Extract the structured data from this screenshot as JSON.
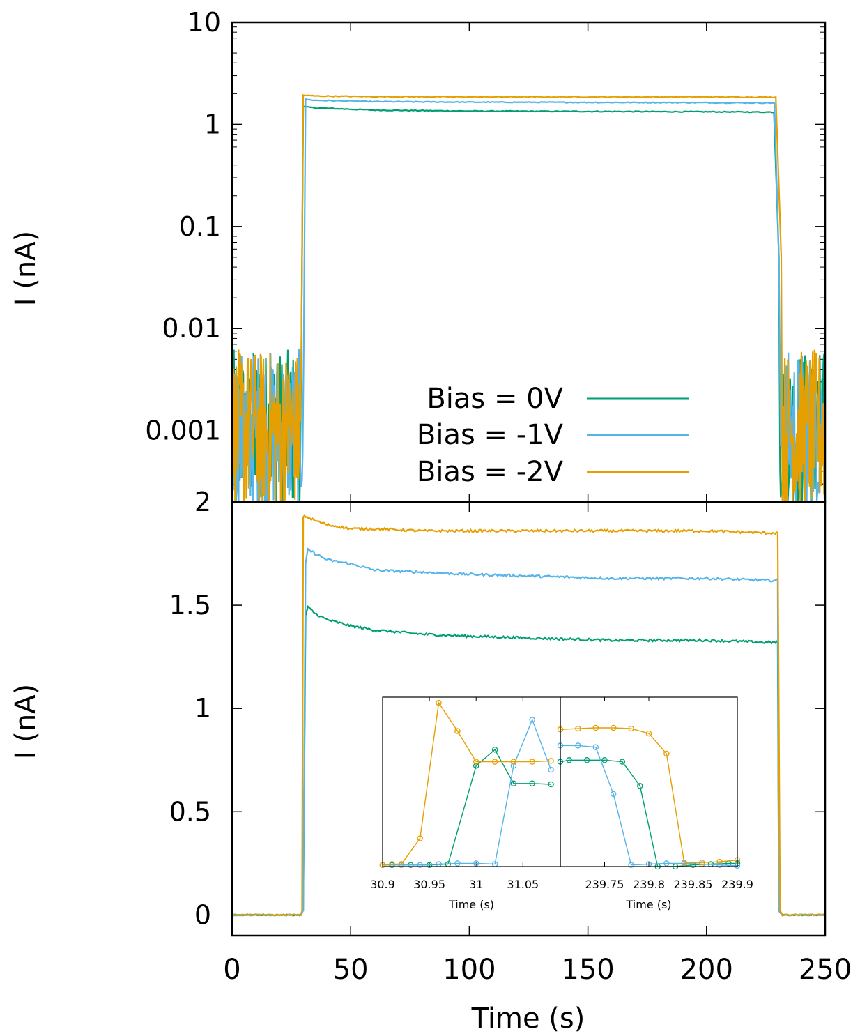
{
  "colors": {
    "bias_0v": "#009e73",
    "bias_m1v": "#56b4e9",
    "bias_m2v": "#e69f00",
    "axis": "#000000"
  },
  "chart_data": [
    {
      "id": "top-log-panel",
      "type": "line",
      "xlabel": "",
      "ylabel": "I (nA)",
      "yscale": "log",
      "xlim": [
        0,
        250
      ],
      "ylim": [
        0.0002,
        10
      ],
      "xticks": [
        0,
        50,
        100,
        150,
        200,
        250
      ],
      "yticks": [
        10,
        1,
        0.1,
        0.01,
        0.001
      ],
      "ytick_labels": [
        "10",
        "1",
        "0.1",
        "0.01",
        "0.001"
      ],
      "legend": {
        "placement": "bottom-center",
        "entries": [
          "Bias = 0V",
          "Bias = -1V",
          "Bias = -2V"
        ]
      },
      "series": [
        {
          "name": "Bias = 0V",
          "color": "#009e73",
          "on_segment": {
            "x": [
              30,
              35,
              60,
              100,
              150,
              200,
              229
            ],
            "y": [
              1.49,
              1.45,
              1.38,
              1.35,
              1.34,
              1.33,
              1.32
            ]
          },
          "on_time": 30,
          "off_time": 231,
          "noise_floor": 0.001
        },
        {
          "name": "Bias = -1V",
          "color": "#56b4e9",
          "on_segment": {
            "x": [
              30,
              35,
              60,
              100,
              150,
              200,
              229
            ],
            "y": [
              1.77,
              1.72,
              1.67,
              1.65,
              1.64,
              1.63,
              1.62
            ]
          },
          "on_time": 31,
          "off_time": 231,
          "noise_floor": 0.001
        },
        {
          "name": "Bias = -2V",
          "color": "#e69f00",
          "on_segment": {
            "x": [
              30,
              35,
              60,
              100,
              150,
              200,
              229
            ],
            "y": [
              1.93,
              1.9,
              1.87,
              1.86,
              1.86,
              1.86,
              1.85
            ]
          },
          "on_time": 30,
          "off_time": 232,
          "noise_floor": 0.001
        }
      ]
    },
    {
      "id": "bottom-linear-panel",
      "type": "line",
      "xlabel": "Time (s)",
      "ylabel": "I (nA)",
      "xlim": [
        0,
        250
      ],
      "ylim": [
        -0.1,
        2
      ],
      "xticks": [
        0,
        50,
        100,
        150,
        200,
        250
      ],
      "yticks": [
        0,
        0.5,
        1,
        1.5,
        2
      ],
      "series": [
        {
          "name": "Bias = 0V",
          "color": "#009e73",
          "x": [
            0,
            29,
            30,
            31,
            32,
            35,
            40,
            50,
            60,
            80,
            100,
            130,
            160,
            200,
            225,
            228,
            229,
            230,
            230.5,
            232,
            250
          ],
          "y": [
            0,
            0,
            0.02,
            1.45,
            1.49,
            1.46,
            1.43,
            1.4,
            1.38,
            1.36,
            1.35,
            1.34,
            1.33,
            1.33,
            1.32,
            1.32,
            1.32,
            1.32,
            0.02,
            0,
            0
          ]
        },
        {
          "name": "Bias = -1V",
          "color": "#56b4e9",
          "x": [
            0,
            29,
            30,
            31,
            32,
            35,
            40,
            50,
            60,
            80,
            100,
            130,
            160,
            200,
            225,
            228,
            229,
            230,
            230.5,
            232,
            250
          ],
          "y": [
            0,
            0,
            0.02,
            1.7,
            1.77,
            1.75,
            1.72,
            1.7,
            1.67,
            1.66,
            1.65,
            1.64,
            1.63,
            1.63,
            1.62,
            1.62,
            1.62,
            1.62,
            0.02,
            0,
            0
          ]
        },
        {
          "name": "Bias = -2V",
          "color": "#e69f00",
          "x": [
            0,
            29,
            29.5,
            30,
            31,
            35,
            40,
            50,
            60,
            80,
            100,
            130,
            160,
            200,
            225,
            228,
            229,
            230,
            231,
            232,
            250
          ],
          "y": [
            0,
            0,
            0.02,
            1.93,
            1.93,
            1.91,
            1.89,
            1.87,
            1.87,
            1.86,
            1.86,
            1.86,
            1.86,
            1.86,
            1.85,
            1.85,
            1.85,
            1.85,
            0.02,
            0,
            0
          ]
        }
      ]
    },
    {
      "id": "inset-left",
      "type": "line",
      "xlabel": "Time (s)",
      "xlim": [
        30.9,
        31.09
      ],
      "xticks": [
        30.9,
        30.95,
        31,
        31.05
      ],
      "xtick_labels": [
        "30.9",
        "30.95",
        "31",
        "31.05"
      ],
      "ylim": [
        0,
        2.1
      ],
      "series": [
        {
          "name": "Bias = 0V",
          "color": "#009e73",
          "x": [
            30.9,
            30.91,
            30.93,
            30.95,
            30.97,
            31.0,
            31.02,
            31.04,
            31.06,
            31.08
          ],
          "y": [
            0.02,
            0.02,
            0.02,
            0.02,
            0.03,
            1.25,
            1.45,
            1.03,
            1.03,
            1.02
          ]
        },
        {
          "name": "Bias = -1V",
          "color": "#56b4e9",
          "x": [
            30.9,
            30.92,
            30.94,
            30.96,
            30.98,
            31.0,
            31.02,
            31.04,
            31.06,
            31.08
          ],
          "y": [
            0.02,
            0.02,
            0.02,
            0.03,
            0.04,
            0.04,
            0.03,
            1.25,
            1.82,
            1.2
          ]
        },
        {
          "name": "Bias = -2V",
          "color": "#e69f00",
          "x": [
            30.9,
            30.91,
            30.92,
            30.94,
            30.96,
            30.98,
            31.0,
            31.02,
            31.04,
            31.06,
            31.08
          ],
          "y": [
            0.02,
            0.03,
            0.03,
            0.35,
            2.03,
            1.68,
            1.3,
            1.3,
            1.3,
            1.3,
            1.31
          ]
        }
      ]
    },
    {
      "id": "inset-right",
      "type": "line",
      "xlabel": "Time (s)",
      "xlim": [
        239.7,
        239.9
      ],
      "xticks": [
        239.75,
        239.8,
        239.85,
        239.9
      ],
      "xtick_labels": [
        "239.75",
        "239.8",
        "239.85",
        "239.9"
      ],
      "ylim": [
        0,
        2.1
      ],
      "series": [
        {
          "name": "Bias = 0V",
          "color": "#009e73",
          "x": [
            239.7,
            239.71,
            239.73,
            239.75,
            239.77,
            239.79,
            239.81,
            239.83,
            239.85,
            239.87,
            239.89,
            239.9
          ],
          "y": [
            1.3,
            1.32,
            1.32,
            1.32,
            1.3,
            1.0,
            0.0,
            0.0,
            0.02,
            0.03,
            0.04,
            0.04
          ]
        },
        {
          "name": "Bias = -1V",
          "color": "#56b4e9",
          "x": [
            239.7,
            239.72,
            239.74,
            239.76,
            239.78,
            239.8,
            239.82,
            239.84,
            239.86,
            239.88,
            239.9
          ],
          "y": [
            1.5,
            1.5,
            1.48,
            0.9,
            0.02,
            0.03,
            0.04,
            0.04,
            0.03,
            0.02,
            0.01
          ]
        },
        {
          "name": "Bias = -2V",
          "color": "#e69f00",
          "x": [
            239.7,
            239.72,
            239.74,
            239.76,
            239.78,
            239.8,
            239.82,
            239.84,
            239.86,
            239.88,
            239.9
          ],
          "y": [
            1.7,
            1.71,
            1.72,
            1.72,
            1.71,
            1.65,
            1.4,
            0.05,
            0.05,
            0.06,
            0.08
          ]
        }
      ]
    }
  ]
}
